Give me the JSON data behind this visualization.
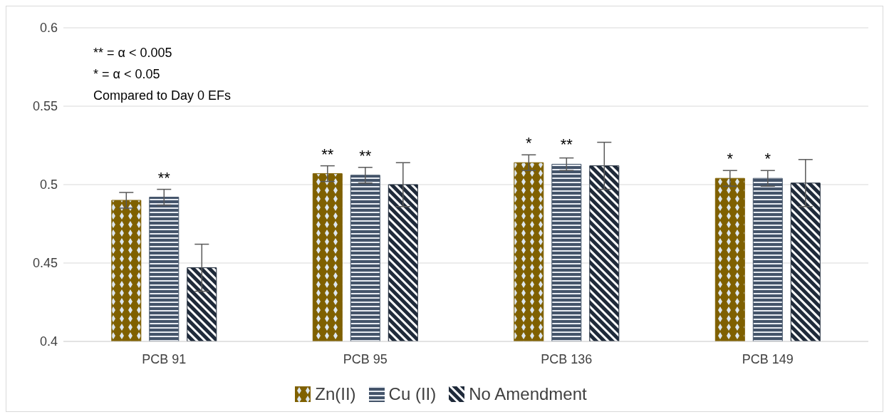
{
  "chart_data": {
    "type": "bar",
    "categories": [
      "PCB 91",
      "PCB 95",
      "PCB 136",
      "PCB 149"
    ],
    "series": [
      {
        "name": "Zn(II)",
        "color": "#7f6000",
        "values": [
          0.49,
          0.507,
          0.514,
          0.504
        ],
        "errors": [
          0.005,
          0.005,
          0.005,
          0.005
        ],
        "value_labels": [
          null,
          "**",
          "*",
          "*"
        ]
      },
      {
        "name": "Cu (II)",
        "color": "#44546a",
        "values": [
          0.492,
          0.506,
          0.513,
          0.504
        ],
        "errors": [
          0.005,
          0.005,
          0.004,
          0.005
        ],
        "value_labels": [
          "**",
          "**",
          "**",
          "*"
        ]
      },
      {
        "name": "No Amendment",
        "color": "#1f2a3a",
        "values": [
          0.447,
          0.5,
          0.512,
          0.501
        ],
        "errors": [
          0.015,
          0.014,
          0.015,
          0.015
        ]
      }
    ],
    "ylim": [
      0.4,
      0.6
    ],
    "yticks": [
      0.4,
      0.45,
      0.5,
      0.55,
      0.6
    ],
    "grid": "y",
    "legend": "bottom",
    "annotations": [
      "** = α < 0.005",
      "* = α < 0.05",
      "Compared to Day 0 EFs"
    ]
  }
}
